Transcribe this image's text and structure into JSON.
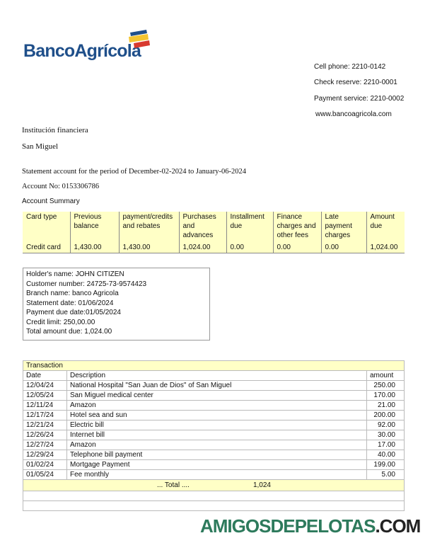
{
  "logo": {
    "text": "BancoAgrícola",
    "colors": [
      "#1f4f8a",
      "#f4c531",
      "#d83a2f"
    ]
  },
  "contact": [
    "Cell phone: 2210-0142",
    "Check reserve: 2210-0001",
    "Payment service: 2210-0002",
    "www.bancoagricola.com"
  ],
  "institution": "Institución financiera",
  "city": "San Miguel",
  "period": "Statement account for the period of December-02-2024 to January-06-2024",
  "account_no": "Account No: 0153306786",
  "summary_title": "Account Summary",
  "summary": {
    "headers": [
      "Card type",
      "Previous balance",
      "payment/credits and rebates",
      "Purchases and advances",
      "Installment due",
      "Finance charges and other fees",
      "Late payment charges",
      "Amount due"
    ],
    "values": [
      "Credit card",
      "1,430.00",
      "1,430.00",
      "1,024.00",
      "0.00",
      "0.00",
      "0.00",
      "1,024.00"
    ]
  },
  "holder": [
    "Holder's name: JOHN CITIZEN",
    "Customer number: 24725-73-9574423",
    "Branch name: banco Agricola",
    "Statement date: 01/06/2024",
    "Payment due date:01/05/2024",
    "Credit limit: 250,00.00",
    "Total amount due: 1,024.00"
  ],
  "transactions": {
    "title": "Transaction",
    "headers": [
      "Date",
      "Description",
      "amount"
    ],
    "rows": [
      [
        "12/04/24",
        "National Hospital \"San Juan de Dios\" of San Miguel",
        "250.00"
      ],
      [
        "12/05/24",
        "San Miguel medical center",
        "170.00"
      ],
      [
        "12/11/24",
        "Amazon",
        "21.00"
      ],
      [
        "12/17/24",
        "Hotel sea and sun",
        "200.00"
      ],
      [
        "12/21/24",
        "Electric bill",
        "92.00"
      ],
      [
        "12/26/24",
        "Internet bill",
        "30.00"
      ],
      [
        "12/27/24",
        "Amazon",
        "17.00"
      ],
      [
        "12/29/24",
        "Telephone bill payment",
        "40.00"
      ],
      [
        "01/02/24",
        "Mortgage Payment",
        "199.00"
      ],
      [
        "01/05/24",
        "Fee monthly",
        "5.00"
      ]
    ],
    "total_label": "... Total ....",
    "total_value": "1,024"
  },
  "watermark": {
    "main": "AMIGOSDEPELOTAS",
    "suffix": ".COM"
  }
}
